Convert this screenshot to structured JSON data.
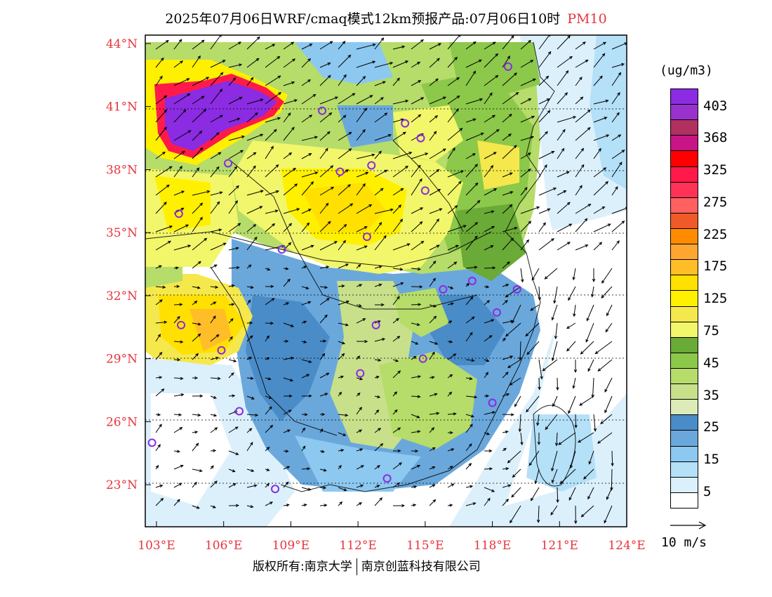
{
  "title": {
    "main": "2025年07月06日WRF/cmaq模式12km预报产品:07月06日10时",
    "pollutant": "PM10"
  },
  "colors": {
    "axis_label": "#e8343c",
    "station_marker": "#8a2be2"
  },
  "axes": {
    "lat_labels": [
      "44°N",
      "41°N",
      "38°N",
      "35°N",
      "32°N",
      "29°N",
      "26°N",
      "23°N"
    ],
    "lon_labels": [
      "103°E",
      "106°E",
      "109°E",
      "112°E",
      "115°E",
      "118°E",
      "121°E",
      "124°E"
    ]
  },
  "legend": {
    "unit": "(ug/m3)",
    "colors": [
      "#8b2be2",
      "#9932cc",
      "#b03060",
      "#c71585",
      "#ff0000",
      "#ff1a4a",
      "#ff3355",
      "#ff6060",
      "#f05a28",
      "#ff8c00",
      "#ffa630",
      "#ffbe28",
      "#ffe000",
      "#fff000",
      "#f5e84c",
      "#f2f66a",
      "#6aaa36",
      "#8cc84a",
      "#b6dc6a",
      "#c8e08a",
      "#dcebb8",
      "#4a8cc8",
      "#6aa8dc",
      "#8cc8f0",
      "#b4e0f8",
      "#dcf0fc",
      "#ffffff"
    ],
    "labels": [
      "403",
      "368",
      "325",
      "275",
      "225",
      "175",
      "125",
      "75",
      "45",
      "35",
      "25",
      "15",
      "5"
    ]
  },
  "wind": {
    "reference_label": "10 m/s"
  },
  "copyright": {
    "left": "版权所有:南京大学",
    "right": "南京创蓝科技有限公司"
  },
  "stations": [
    {
      "lon": 110.4,
      "lat": 40.8
    },
    {
      "lon": 114.1,
      "lat": 40.2
    },
    {
      "lon": 114.8,
      "lat": 39.5
    },
    {
      "lon": 106.2,
      "lat": 38.3
    },
    {
      "lon": 111.2,
      "lat": 37.9
    },
    {
      "lon": 112.6,
      "lat": 38.2
    },
    {
      "lon": 115.0,
      "lat": 37.0
    },
    {
      "lon": 104.0,
      "lat": 35.9
    },
    {
      "lon": 112.4,
      "lat": 34.8
    },
    {
      "lon": 108.6,
      "lat": 34.2
    },
    {
      "lon": 115.8,
      "lat": 32.3
    },
    {
      "lon": 117.1,
      "lat": 32.7
    },
    {
      "lon": 119.1,
      "lat": 32.3
    },
    {
      "lon": 118.2,
      "lat": 31.2
    },
    {
      "lon": 104.1,
      "lat": 30.6
    },
    {
      "lon": 112.8,
      "lat": 30.6
    },
    {
      "lon": 105.9,
      "lat": 29.4
    },
    {
      "lon": 114.9,
      "lat": 29.0
    },
    {
      "lon": 112.1,
      "lat": 28.3
    },
    {
      "lon": 106.7,
      "lat": 26.5
    },
    {
      "lon": 118.0,
      "lat": 26.9
    },
    {
      "lon": 102.8,
      "lat": 25.0
    },
    {
      "lon": 108.3,
      "lat": 22.8
    },
    {
      "lon": 113.3,
      "lat": 23.3
    },
    {
      "lon": 118.7,
      "lat": 42.9
    }
  ]
}
